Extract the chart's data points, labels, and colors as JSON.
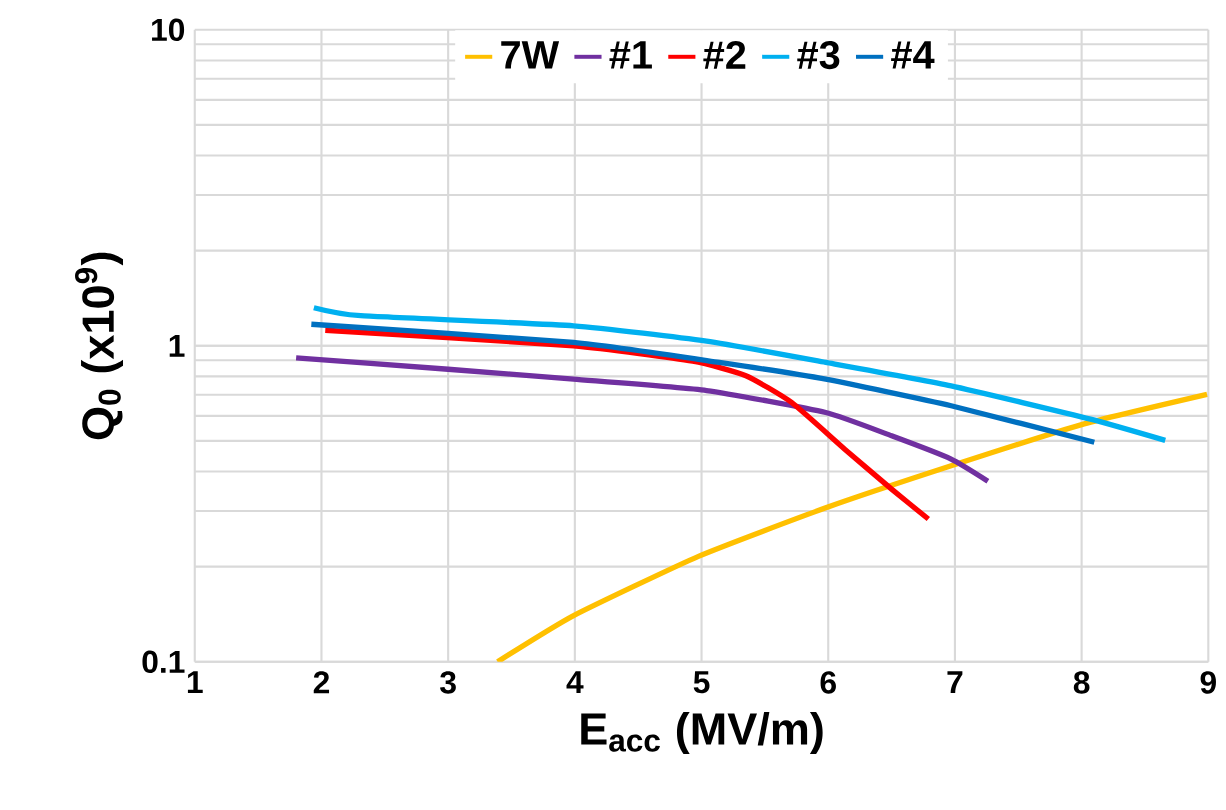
{
  "chart_data": {
    "type": "line",
    "xlabel": "E$_{acc}$ (MV/m)",
    "ylabel": "Q$_{0}$ (x10$^{9}$)",
    "log": "y",
    "xlim": [
      1,
      9
    ],
    "ylim": [
      0.1,
      10
    ],
    "xticks": [
      1,
      2,
      3,
      4,
      5,
      6,
      7,
      8,
      9
    ],
    "yticks": [
      0.1,
      1,
      10
    ],
    "grid": true,
    "legend": "top",
    "marker": "none",
    "line_style": "solid",
    "series": [
      {
        "name": "7W",
        "color": "#ffc000",
        "x": [
          3.39,
          3.99,
          4.98,
          5.98,
          6.97,
          8.02,
          8.99
        ],
        "values": [
          0.1,
          0.14,
          0.216,
          0.307,
          0.417,
          0.566,
          0.702
        ]
      },
      {
        "name": "#1",
        "color": "#7030a0",
        "x": [
          1.8,
          3.0,
          3.99,
          5.04,
          5.98,
          6.5,
          6.97,
          7.26
        ],
        "values": [
          0.916,
          0.843,
          0.784,
          0.722,
          0.615,
          0.519,
          0.438,
          0.373
        ]
      },
      {
        "name": "#2",
        "color": "#ff0000",
        "x": [
          2.03,
          3.99,
          4.93,
          5.35,
          5.71,
          6.13,
          6.5,
          6.79
        ],
        "values": [
          1.12,
          1.0,
          0.894,
          0.804,
          0.662,
          0.471,
          0.352,
          0.283
        ]
      },
      {
        "name": "#3",
        "color": "#00b0f0",
        "x": [
          1.94,
          2.31,
          3.99,
          5.04,
          5.98,
          6.97,
          8.07,
          8.66
        ],
        "values": [
          1.32,
          1.245,
          1.157,
          1.034,
          0.886,
          0.747,
          0.586,
          0.502
        ]
      },
      {
        "name": "#4",
        "color": "#0070c0",
        "x": [
          1.92,
          3.99,
          5.14,
          5.98,
          6.97,
          8.1
        ],
        "values": [
          1.17,
          1.025,
          0.886,
          0.784,
          0.646,
          0.495
        ]
      }
    ]
  }
}
